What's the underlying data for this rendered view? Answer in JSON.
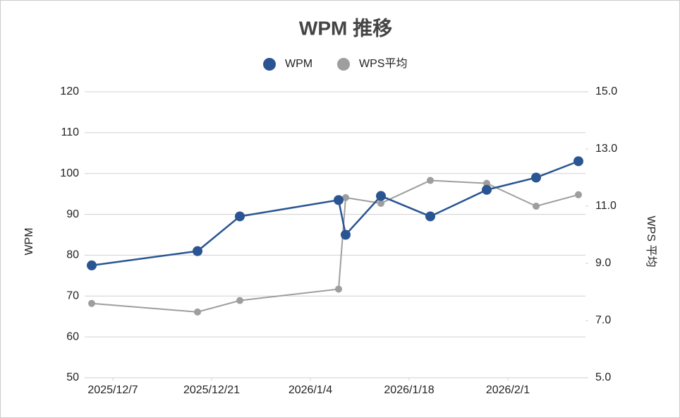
{
  "chart_data": {
    "type": "line",
    "title": "WPM 推移",
    "x": [
      "2025-12-04",
      "2025-12-19",
      "2025-12-25",
      "2026-01-08",
      "2026-01-09",
      "2026-01-14",
      "2026-01-21",
      "2026-01-29",
      "2026-02-05",
      "2026-02-11"
    ],
    "xlim": [
      "2025-12-03",
      "2026-02-12"
    ],
    "xticks": [
      {
        "value": "2025-12-07",
        "label": "2025/12/7"
      },
      {
        "value": "2025-12-21",
        "label": "2025/12/21"
      },
      {
        "value": "2026-01-04",
        "label": "2026/1/4"
      },
      {
        "value": "2026-01-18",
        "label": "2026/1/18"
      },
      {
        "value": "2026-02-01",
        "label": "2026/2/1"
      }
    ],
    "y_label": "WPM",
    "y2_label": "WPS 平均",
    "ylim": [
      50,
      120
    ],
    "yticks": [
      50,
      60,
      70,
      80,
      90,
      100,
      110,
      120
    ],
    "y2lim": [
      5,
      15
    ],
    "y2ticks": [
      {
        "value": 5,
        "label": "5.0"
      },
      {
        "value": 7,
        "label": "7.0"
      },
      {
        "value": 9,
        "label": "9.0"
      },
      {
        "value": 11,
        "label": "11.0"
      },
      {
        "value": 13,
        "label": "13.0"
      },
      {
        "value": 15,
        "label": "15.0"
      }
    ],
    "grid": true,
    "series": [
      {
        "name": "WPM",
        "color": "#2a5592",
        "values": [
          77.5,
          81,
          89.5,
          93.5,
          85,
          94.5,
          89.5,
          96,
          99,
          103
        ]
      },
      {
        "name": "WPS平均",
        "color": "#9e9e9e",
        "axis": "y2",
        "values": [
          7.6,
          7.3,
          7.7,
          8.1,
          11.3,
          11.1,
          11.9,
          11.8,
          11.0,
          11.4
        ]
      }
    ]
  }
}
